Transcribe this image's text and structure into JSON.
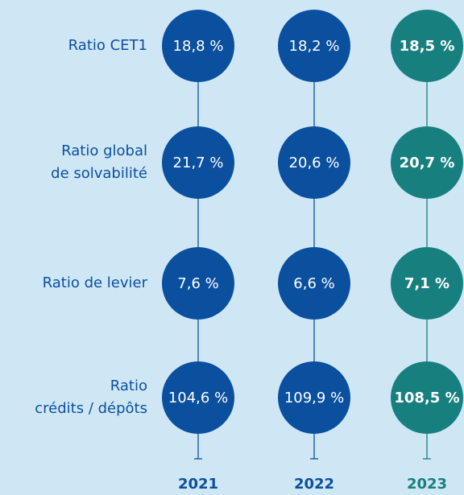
{
  "rows": [
    {
      "label": [
        "Ratio CET1"
      ],
      "values": [
        "18,8 %",
        "18,2 %",
        "18,5 %"
      ]
    },
    {
      "label": [
        "Ratio global",
        "de solvabilité"
      ],
      "values": [
        "21,7 %",
        "20,6 %",
        "20,7 %"
      ]
    },
    {
      "label": [
        "Ratio de levier"
      ],
      "values": [
        "7,6 %",
        "6,6 %",
        "7,1 %"
      ]
    },
    {
      "label": [
        "Ratio",
        "crédits / dépôts"
      ],
      "values": [
        "104,6 %",
        "109,9 %",
        "108,5 %"
      ]
    }
  ],
  "years": [
    "2021",
    "2022",
    "2023"
  ]
}
